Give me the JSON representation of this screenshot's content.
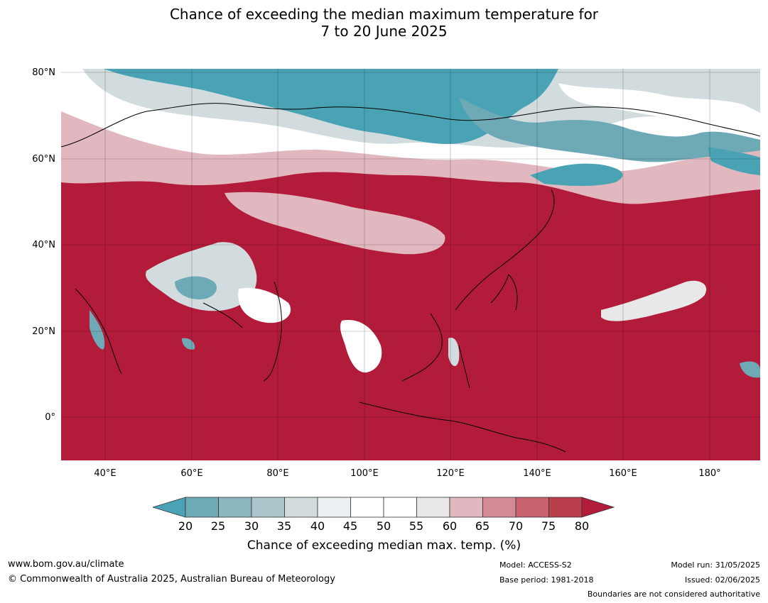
{
  "title": {
    "line1": "Chance of exceeding the median maximum temperature for",
    "line2": "7 to 20 June 2025"
  },
  "lat_labels": [
    "80°N",
    "60°N",
    "40°N",
    "20°N",
    "0°"
  ],
  "lon_labels": [
    "40°E",
    "60°E",
    "80°E",
    "100°E",
    "120°E",
    "140°E",
    "160°E",
    "180°"
  ],
  "colorbar": {
    "levels": [
      "20",
      "25",
      "30",
      "35",
      "40",
      "45",
      "50",
      "55",
      "60",
      "65",
      "70",
      "75",
      "80"
    ],
    "colors": [
      "#4aa3b5",
      "#6ea9b6",
      "#8bb6c0",
      "#aac6cb",
      "#d2dcde",
      "#eaf0f2",
      "#ffffff",
      "#ffffff",
      "#e8e8e8",
      "#e1b8bf",
      "#d48a95",
      "#c8626f",
      "#bb3e4d",
      "#b31b3a"
    ],
    "title": "Chance of exceeding median max. temp. (%)"
  },
  "footer": {
    "url": "www.bom.gov.au/climate",
    "copyright": "© Commonwealth of Australia 2025, Australian Bureau of Meteorology",
    "model": "Model: ACCESS-S2",
    "base_period": "Base period: 1981-2018",
    "model_run": "Model run: 31/05/2025",
    "issued": "Issued: 02/06/2025",
    "boundaries": "Boundaries are not considered authoritative"
  }
}
